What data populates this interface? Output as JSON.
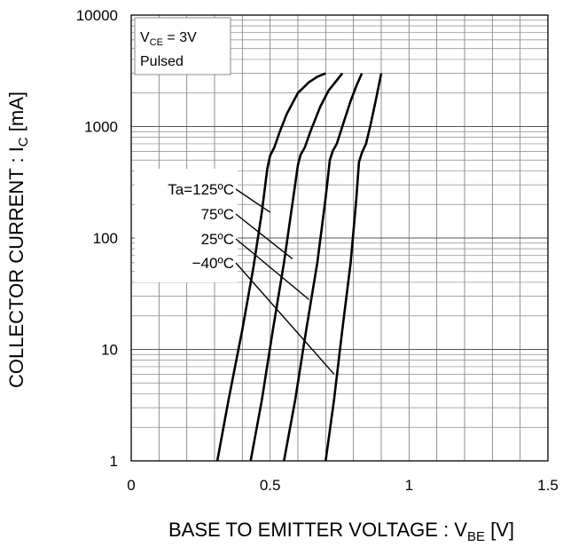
{
  "chart_data": {
    "type": "line",
    "xlabel_main": "BASE TO EMITTER VOLTAGE : V",
    "xlabel_sub": "BE",
    "xlabel_unit": " [V]",
    "ylabel_main": "COLLECTOR CURRENT : I",
    "ylabel_sub": "C",
    "ylabel_unit": " [mA]",
    "xlim": [
      0,
      1.5
    ],
    "ylim": [
      1,
      10000
    ],
    "y_scale": "log",
    "grid": true,
    "x_ticks": [
      "0",
      "0.5",
      "1",
      "1.5"
    ],
    "x_tick_values": [
      0,
      0.5,
      1,
      1.5
    ],
    "y_ticks": [
      "1",
      "10",
      "100",
      "1000",
      "10000"
    ],
    "y_tick_values": [
      1,
      10,
      100,
      1000,
      10000
    ],
    "condition_line1_main": "V",
    "condition_line1_sub": "CE",
    "condition_line1_rest": " = 3V",
    "condition_line2": "Pulsed",
    "legend_position": "left-center",
    "series": [
      {
        "name": "Ta=125ºC",
        "x": [
          0.31,
          0.35,
          0.4,
          0.44,
          0.47,
          0.49,
          0.5,
          0.515,
          0.535,
          0.56,
          0.6,
          0.64,
          0.67,
          0.7
        ],
        "y": [
          1,
          3.5,
          15,
          55,
          170,
          420,
          550,
          650,
          900,
          1300,
          2000,
          2500,
          2800,
          3000
        ]
      },
      {
        "name": "75ºC",
        "x": [
          0.43,
          0.47,
          0.51,
          0.55,
          0.58,
          0.6,
          0.61,
          0.625,
          0.645,
          0.68,
          0.71,
          0.74,
          0.76
        ],
        "y": [
          1,
          3.5,
          15,
          60,
          200,
          450,
          560,
          650,
          900,
          1500,
          2100,
          2600,
          3000
        ]
      },
      {
        "name": "25ºC",
        "x": [
          0.55,
          0.59,
          0.63,
          0.67,
          0.7,
          0.715,
          0.725,
          0.74,
          0.76,
          0.79,
          0.81,
          0.83
        ],
        "y": [
          1,
          3.5,
          15,
          60,
          230,
          500,
          600,
          700,
          1000,
          1700,
          2300,
          3000
        ]
      },
      {
        "name": "−40ºC",
        "x": [
          0.7,
          0.73,
          0.76,
          0.79,
          0.81,
          0.82,
          0.83,
          0.845,
          0.86,
          0.88,
          0.9
        ],
        "y": [
          1,
          3.5,
          15,
          60,
          220,
          480,
          580,
          700,
          1000,
          1700,
          3000
        ]
      }
    ],
    "legend_pointers": [
      {
        "series": "Ta=125ºC",
        "tx": 0.5,
        "ty": 170
      },
      {
        "series": "75ºC",
        "tx": 0.58,
        "ty": 65
      },
      {
        "series": "25ºC",
        "tx": 0.64,
        "ty": 28
      },
      {
        "series": "−40ºC",
        "tx": 0.73,
        "ty": 6
      }
    ]
  }
}
